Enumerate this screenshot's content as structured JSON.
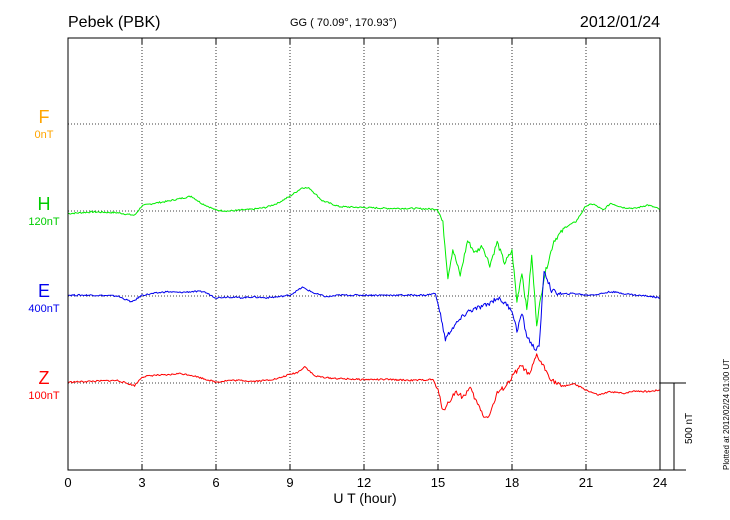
{
  "header": {
    "station": "Pebek (PBK)",
    "coords": "GG ( 70.09°, 170.93°)",
    "date": "2012/01/24"
  },
  "components": [
    {
      "label": "F",
      "offset": "0nT",
      "color": "#ffa500"
    },
    {
      "label": "H",
      "offset": "120nT",
      "color": "#00cc00"
    },
    {
      "label": "E",
      "offset": "400nT",
      "color": "#0000ee"
    },
    {
      "label": "Z",
      "offset": "100nT",
      "color": "#ff0000"
    }
  ],
  "scale_bar_label": "500 nT",
  "plotted_note": "Plotted at 2012/02/24 01:00 UT",
  "chart_data": {
    "type": "line",
    "xlabel": "U T (hour)",
    "xlim": [
      0,
      24
    ],
    "xticks": [
      0,
      3,
      6,
      9,
      12,
      15,
      18,
      21,
      24
    ],
    "scale_nT": 500,
    "grid": true,
    "series": [
      {
        "name": "H",
        "color": "#00ee00",
        "x": [
          0,
          1,
          2,
          2.7,
          3,
          3.5,
          4,
          4.5,
          5,
          5.4,
          6,
          6.5,
          7,
          7.5,
          8,
          8.5,
          9,
          9.5,
          9.8,
          10.3,
          11,
          12,
          13,
          14,
          15,
          15.2,
          15.4,
          15.6,
          15.9,
          16.2,
          16.5,
          16.8,
          17.1,
          17.4,
          17.7,
          18,
          18.2,
          18.4,
          18.6,
          18.8,
          19,
          19.3,
          19.7,
          20.2,
          20.6,
          21,
          21.3,
          21.7,
          22,
          22.5,
          23,
          23.5,
          24
        ],
        "y": [
          -15,
          -5,
          -10,
          -25,
          30,
          45,
          55,
          70,
          85,
          45,
          5,
          0,
          5,
          10,
          20,
          45,
          85,
          135,
          130,
          60,
          25,
          20,
          15,
          15,
          10,
          -70,
          -380,
          -220,
          -370,
          -170,
          -240,
          -200,
          -310,
          -180,
          -300,
          -230,
          -520,
          -350,
          -570,
          -260,
          -650,
          -380,
          -170,
          -90,
          -60,
          30,
          40,
          5,
          45,
          20,
          15,
          35,
          10
        ]
      },
      {
        "name": "E",
        "color": "#0000ee",
        "x": [
          0,
          1,
          2,
          2.6,
          3,
          3.5,
          4,
          4.5,
          5,
          5.5,
          6,
          6.5,
          7,
          7.5,
          8,
          8.5,
          9,
          9.5,
          10,
          10.5,
          11,
          12,
          13,
          14,
          14.5,
          14.9,
          15.1,
          15.3,
          15.5,
          15.8,
          16.2,
          16.6,
          17,
          17.4,
          17.7,
          18,
          18.2,
          18.4,
          18.6,
          18.9,
          19.1,
          19.3,
          19.6,
          20,
          20.5,
          21,
          21.5,
          22,
          22.5,
          23,
          23.5,
          24
        ],
        "y": [
          5,
          5,
          0,
          -35,
          5,
          15,
          25,
          20,
          25,
          25,
          -10,
          -5,
          -10,
          -5,
          -10,
          -5,
          5,
          50,
          15,
          -5,
          5,
          5,
          5,
          5,
          5,
          15,
          -110,
          -250,
          -200,
          -150,
          -90,
          -70,
          -50,
          -10,
          -40,
          -80,
          -200,
          -100,
          -230,
          -300,
          -300,
          150,
          30,
          10,
          15,
          5,
          10,
          25,
          15,
          5,
          0,
          -10
        ]
      },
      {
        "name": "Z",
        "color": "#ff0000",
        "x": [
          0,
          1,
          2,
          2.7,
          3,
          3.5,
          4,
          4.5,
          5,
          5.5,
          6,
          6.5,
          7,
          7.5,
          8,
          8.5,
          9,
          9.3,
          9.6,
          10,
          10.5,
          11,
          12,
          13,
          14,
          14.8,
          15,
          15.2,
          15.4,
          15.7,
          16,
          16.3,
          16.6,
          16.9,
          17.1,
          17.4,
          17.8,
          18.1,
          18.4,
          18.7,
          19,
          19.3,
          19.6,
          20,
          20.5,
          21,
          21.5,
          22,
          22.5,
          23,
          23.5,
          24
        ],
        "y": [
          5,
          10,
          15,
          -15,
          35,
          45,
          45,
          55,
          45,
          25,
          5,
          15,
          15,
          10,
          15,
          25,
          50,
          60,
          95,
          40,
          30,
          25,
          20,
          20,
          15,
          20,
          -45,
          -155,
          -120,
          -50,
          -80,
          -30,
          -120,
          -200,
          -180,
          -60,
          -10,
          55,
          100,
          40,
          160,
          90,
          20,
          -20,
          -5,
          -40,
          -70,
          -50,
          -60,
          -45,
          -50,
          -40
        ]
      }
    ]
  }
}
